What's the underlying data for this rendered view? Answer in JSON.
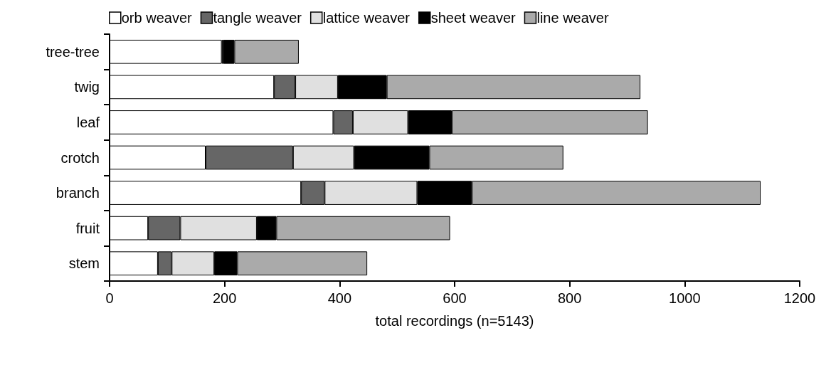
{
  "chart_data": {
    "type": "bar",
    "orientation": "horizontal",
    "stacked": true,
    "categories": [
      "tree-tree",
      "twig",
      "leaf",
      "crotch",
      "branch",
      "fruit",
      "stem"
    ],
    "series": [
      {
        "name": "orb weaver",
        "color": "#ffffff",
        "values": [
          195,
          286,
          389,
          167,
          333,
          67,
          84
        ]
      },
      {
        "name": "tangle weaver",
        "color": "#666666",
        "values": [
          2,
          37,
          34,
          152,
          41,
          56,
          24
        ]
      },
      {
        "name": "lattice weaver",
        "color": "#e0e0e0",
        "values": [
          null,
          74,
          96,
          106,
          161,
          133,
          74
        ]
      },
      {
        "name": "sheet weaver",
        "color": "#000000",
        "values": [
          20,
          85,
          76,
          131,
          95,
          34,
          40
        ]
      },
      {
        "name": "line weaver",
        "color": "#aaaaaa",
        "values": [
          112,
          441,
          341,
          233,
          502,
          302,
          226
        ]
      }
    ],
    "xlabel": "total recordings (n=5143)",
    "xlim": [
      0,
      1200
    ],
    "xticks": [
      0,
      200,
      400,
      600,
      800,
      1000,
      1200
    ],
    "grid": false,
    "legend": "top"
  }
}
